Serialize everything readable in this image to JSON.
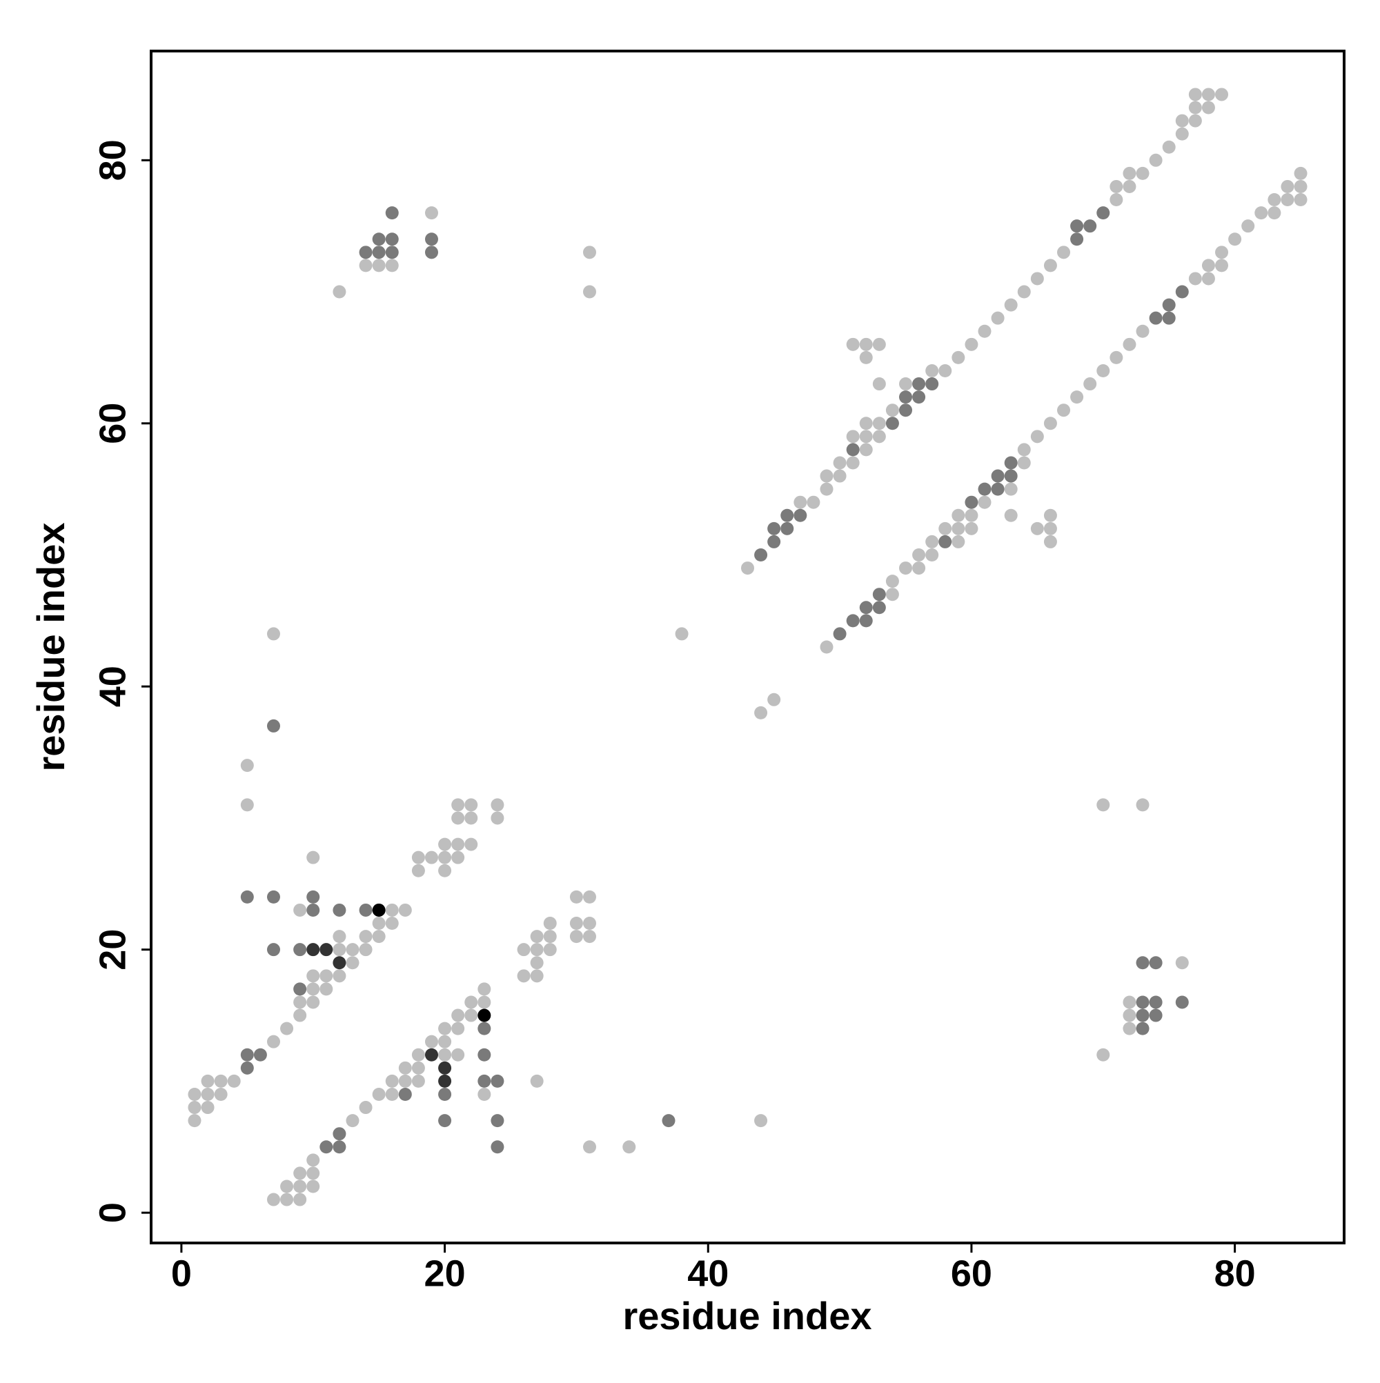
{
  "chart_data": {
    "type": "scatter",
    "xlabel": "residue index",
    "ylabel": "residue index",
    "xlim": [
      -2.3,
      88.3
    ],
    "ylim": [
      -2.3,
      88.3
    ],
    "xticks": [
      0,
      20,
      40,
      60,
      80
    ],
    "yticks": [
      0,
      20,
      40,
      60,
      80
    ],
    "series": [
      {
        "color": "#bebebe",
        "x": [
          7,
          8,
          9,
          8,
          9,
          10,
          9,
          10,
          10,
          31,
          34,
          1,
          13,
          44,
          1,
          2,
          14,
          1,
          2,
          3,
          15,
          16,
          23,
          2,
          3,
          4,
          16,
          17,
          18,
          27,
          17,
          18,
          18,
          20,
          21,
          70,
          7,
          19,
          20,
          8,
          20,
          21,
          72,
          9,
          21,
          22,
          72,
          9,
          10,
          22,
          23,
          72,
          10,
          11,
          23,
          10,
          11,
          12,
          26,
          27,
          13,
          27,
          76,
          12,
          13,
          14,
          26,
          27,
          28,
          12,
          14,
          15,
          27,
          28,
          30,
          31,
          15,
          16,
          28,
          30,
          31,
          9,
          16,
          17,
          30,
          31,
          18,
          20,
          10,
          18,
          19,
          20,
          21,
          20,
          21,
          22,
          21,
          22,
          24,
          5,
          21,
          22,
          24,
          70,
          73,
          5,
          44,
          45,
          49,
          7,
          38,
          54,
          54,
          43,
          55,
          56,
          56,
          57,
          57,
          59,
          66,
          58,
          59,
          60,
          65,
          66,
          59,
          60,
          63,
          66,
          47,
          48,
          61,
          49,
          63,
          49,
          50,
          50,
          51,
          64,
          52,
          64,
          51,
          52,
          53,
          65,
          52,
          53,
          66,
          54,
          67,
          68,
          53,
          55,
          69,
          57,
          58,
          70,
          52,
          59,
          71,
          51,
          52,
          53,
          60,
          72,
          61,
          73,
          62,
          63,
          12,
          31,
          64,
          65,
          77,
          78,
          14,
          15,
          16,
          66,
          78,
          79,
          31,
          67,
          79,
          80,
          81,
          19,
          82,
          83,
          71,
          83,
          84,
          85,
          71,
          72,
          84,
          85,
          72,
          73,
          85,
          74,
          75,
          76,
          76,
          77,
          77,
          78,
          77,
          78,
          79
        ],
        "values": [
          1,
          1,
          1,
          2,
          2,
          2,
          3,
          3,
          4,
          5,
          5,
          7,
          7,
          7,
          8,
          8,
          8,
          9,
          9,
          9,
          9,
          9,
          9,
          10,
          10,
          10,
          10,
          10,
          10,
          10,
          11,
          11,
          12,
          12,
          12,
          12,
          13,
          13,
          13,
          14,
          14,
          14,
          14,
          15,
          15,
          15,
          15,
          16,
          16,
          16,
          16,
          16,
          17,
          17,
          17,
          18,
          18,
          18,
          18,
          18,
          19,
          19,
          19,
          20,
          20,
          20,
          20,
          20,
          20,
          21,
          21,
          21,
          21,
          21,
          21,
          21,
          22,
          22,
          22,
          22,
          22,
          23,
          23,
          23,
          24,
          24,
          26,
          26,
          27,
          27,
          27,
          27,
          27,
          28,
          28,
          28,
          30,
          30,
          30,
          31,
          31,
          31,
          31,
          31,
          31,
          34,
          38,
          39,
          43,
          44,
          44,
          47,
          48,
          49,
          49,
          49,
          50,
          50,
          51,
          51,
          51,
          52,
          52,
          52,
          52,
          52,
          53,
          53,
          53,
          53,
          54,
          54,
          54,
          55,
          55,
          56,
          56,
          57,
          57,
          57,
          58,
          58,
          59,
          59,
          59,
          59,
          60,
          60,
          60,
          61,
          61,
          62,
          63,
          63,
          63,
          64,
          64,
          64,
          65,
          65,
          65,
          66,
          66,
          66,
          66,
          66,
          67,
          67,
          68,
          69,
          70,
          70,
          70,
          71,
          71,
          71,
          72,
          72,
          72,
          72,
          72,
          72,
          73,
          73,
          73,
          74,
          75,
          76,
          76,
          76,
          77,
          77,
          77,
          77,
          78,
          78,
          78,
          78,
          79,
          79,
          79,
          80,
          81,
          82,
          83,
          83,
          84,
          84,
          85,
          85,
          85
        ]
      },
      {
        "color": "#7a7a7a",
        "x": [
          11,
          12,
          24,
          12,
          20,
          24,
          37,
          17,
          20,
          23,
          24,
          5,
          5,
          6,
          23,
          23,
          73,
          73,
          74,
          73,
          74,
          76,
          9,
          73,
          74,
          7,
          9,
          10,
          12,
          14,
          5,
          7,
          10,
          7,
          50,
          51,
          52,
          52,
          53,
          53,
          44,
          45,
          58,
          45,
          46,
          46,
          47,
          60,
          61,
          62,
          62,
          63,
          63,
          51,
          54,
          55,
          55,
          56,
          56,
          57,
          74,
          75,
          75,
          76,
          14,
          15,
          16,
          19,
          15,
          16,
          19,
          68,
          68,
          69,
          16,
          70
        ],
        "values": [
          5,
          5,
          5,
          6,
          7,
          7,
          7,
          9,
          9,
          10,
          10,
          11,
          12,
          12,
          12,
          14,
          14,
          15,
          15,
          16,
          16,
          16,
          17,
          19,
          19,
          20,
          20,
          23,
          23,
          23,
          24,
          24,
          24,
          37,
          44,
          45,
          45,
          46,
          46,
          47,
          50,
          51,
          51,
          52,
          52,
          53,
          53,
          54,
          55,
          55,
          56,
          56,
          57,
          58,
          60,
          61,
          62,
          62,
          63,
          63,
          68,
          68,
          69,
          70,
          73,
          73,
          73,
          73,
          74,
          74,
          74,
          74,
          75,
          75,
          76,
          76
        ]
      },
      {
        "color": "#333333",
        "x": [
          20,
          20,
          19,
          12,
          10,
          11
        ],
        "values": [
          10,
          11,
          12,
          19,
          20,
          20
        ]
      },
      {
        "color": "#000000",
        "x": [
          23,
          15
        ],
        "values": [
          15,
          23
        ]
      }
    ]
  }
}
